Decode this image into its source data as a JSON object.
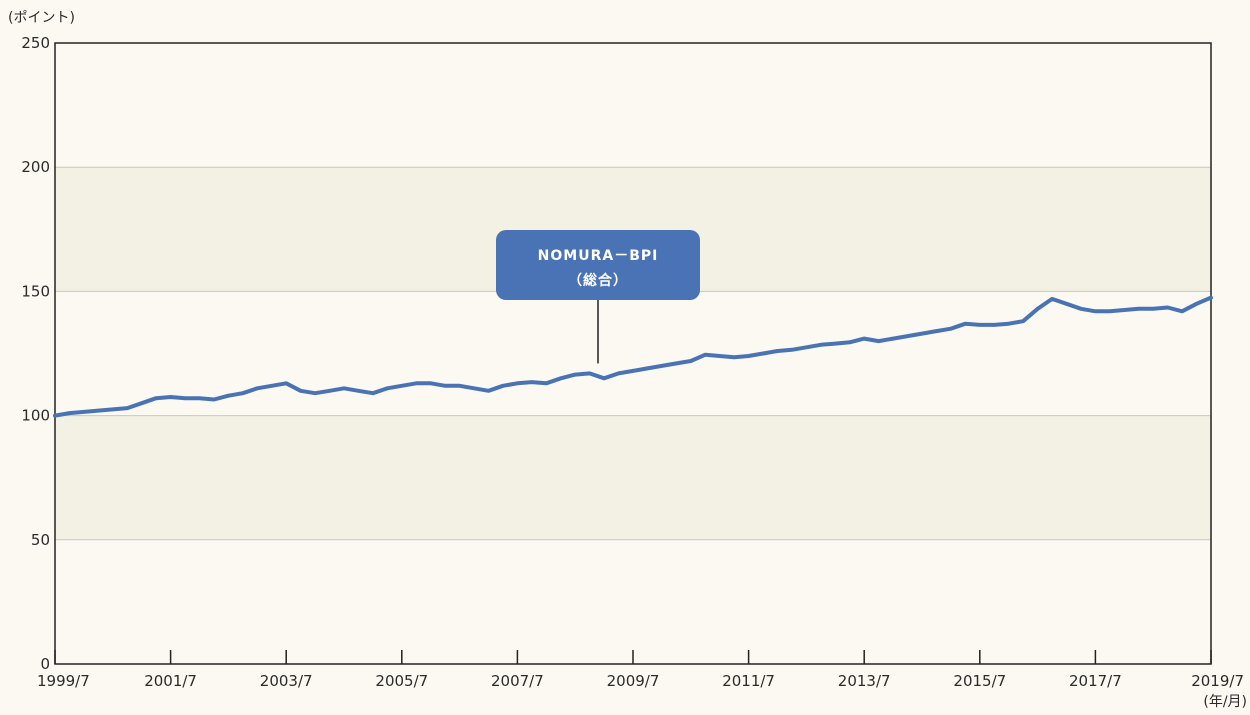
{
  "chart_data": {
    "type": "line",
    "ylabel": "(ポイント)",
    "xlabel_line1": "",
    "xlabel_line2": "(年/月)",
    "ylim": [
      0,
      250
    ],
    "yticks": [
      0,
      50,
      100,
      150,
      200,
      250
    ],
    "xlim": [
      1999.5,
      2019.5
    ],
    "xticks": [
      {
        "x": 1999.5,
        "label": "1999/7"
      },
      {
        "x": 2001.5,
        "label": "2001/7"
      },
      {
        "x": 2003.5,
        "label": "2003/7"
      },
      {
        "x": 2005.5,
        "label": "2005/7"
      },
      {
        "x": 2007.5,
        "label": "2007/7"
      },
      {
        "x": 2009.5,
        "label": "2009/7"
      },
      {
        "x": 2011.5,
        "label": "2011/7"
      },
      {
        "x": 2013.5,
        "label": "2013/7"
      },
      {
        "x": 2015.5,
        "label": "2015/7"
      },
      {
        "x": 2017.5,
        "label": "2017/7"
      },
      {
        "x": 2019.5,
        "label": "2019/7"
      }
    ],
    "grid": true,
    "band_color": "#f3f1e3",
    "series": [
      {
        "name": "NOMURA－BPI\n（総合）",
        "color": "#4a73b5",
        "points": [
          [
            1999.5,
            100
          ],
          [
            1999.75,
            101
          ],
          [
            2000.0,
            101.5
          ],
          [
            2000.25,
            102
          ],
          [
            2000.5,
            102.5
          ],
          [
            2000.75,
            103
          ],
          [
            2001.0,
            105
          ],
          [
            2001.25,
            107
          ],
          [
            2001.5,
            107.5
          ],
          [
            2001.75,
            107
          ],
          [
            2002.0,
            107
          ],
          [
            2002.25,
            106.5
          ],
          [
            2002.5,
            108
          ],
          [
            2002.75,
            109
          ],
          [
            2003.0,
            111
          ],
          [
            2003.25,
            112
          ],
          [
            2003.5,
            113
          ],
          [
            2003.75,
            110
          ],
          [
            2004.0,
            109
          ],
          [
            2004.25,
            110
          ],
          [
            2004.5,
            111
          ],
          [
            2004.75,
            110
          ],
          [
            2005.0,
            109
          ],
          [
            2005.25,
            111
          ],
          [
            2005.5,
            112
          ],
          [
            2005.75,
            113
          ],
          [
            2006.0,
            113
          ],
          [
            2006.25,
            112
          ],
          [
            2006.5,
            112
          ],
          [
            2006.75,
            111
          ],
          [
            2007.0,
            110
          ],
          [
            2007.25,
            112
          ],
          [
            2007.5,
            113
          ],
          [
            2007.75,
            113.5
          ],
          [
            2008.0,
            113
          ],
          [
            2008.25,
            115
          ],
          [
            2008.5,
            116.5
          ],
          [
            2008.75,
            117
          ],
          [
            2009.0,
            115
          ],
          [
            2009.25,
            117
          ],
          [
            2009.5,
            118
          ],
          [
            2009.75,
            119
          ],
          [
            2010.0,
            120
          ],
          [
            2010.25,
            121
          ],
          [
            2010.5,
            122
          ],
          [
            2010.75,
            124.5
          ],
          [
            2011.0,
            124
          ],
          [
            2011.25,
            123.5
          ],
          [
            2011.5,
            124
          ],
          [
            2011.75,
            125
          ],
          [
            2012.0,
            126
          ],
          [
            2012.25,
            126.5
          ],
          [
            2012.5,
            127.5
          ],
          [
            2012.75,
            128.5
          ],
          [
            2013.0,
            129
          ],
          [
            2013.25,
            129.5
          ],
          [
            2013.5,
            131
          ],
          [
            2013.75,
            130
          ],
          [
            2014.0,
            131
          ],
          [
            2014.25,
            132
          ],
          [
            2014.5,
            133
          ],
          [
            2014.75,
            134
          ],
          [
            2015.0,
            135
          ],
          [
            2015.25,
            137
          ],
          [
            2015.5,
            136.5
          ],
          [
            2015.75,
            136.5
          ],
          [
            2016.0,
            137
          ],
          [
            2016.25,
            138
          ],
          [
            2016.5,
            143
          ],
          [
            2016.75,
            147
          ],
          [
            2017.0,
            145
          ],
          [
            2017.25,
            143
          ],
          [
            2017.5,
            142
          ],
          [
            2017.75,
            142
          ],
          [
            2018.0,
            142.5
          ],
          [
            2018.25,
            143
          ],
          [
            2018.5,
            143
          ],
          [
            2018.75,
            143.5
          ],
          [
            2019.0,
            142
          ],
          [
            2019.25,
            145
          ],
          [
            2019.5,
            147.5
          ]
        ]
      }
    ],
    "annotation": {
      "target_x": 2009.5,
      "target_y": 121
    }
  }
}
